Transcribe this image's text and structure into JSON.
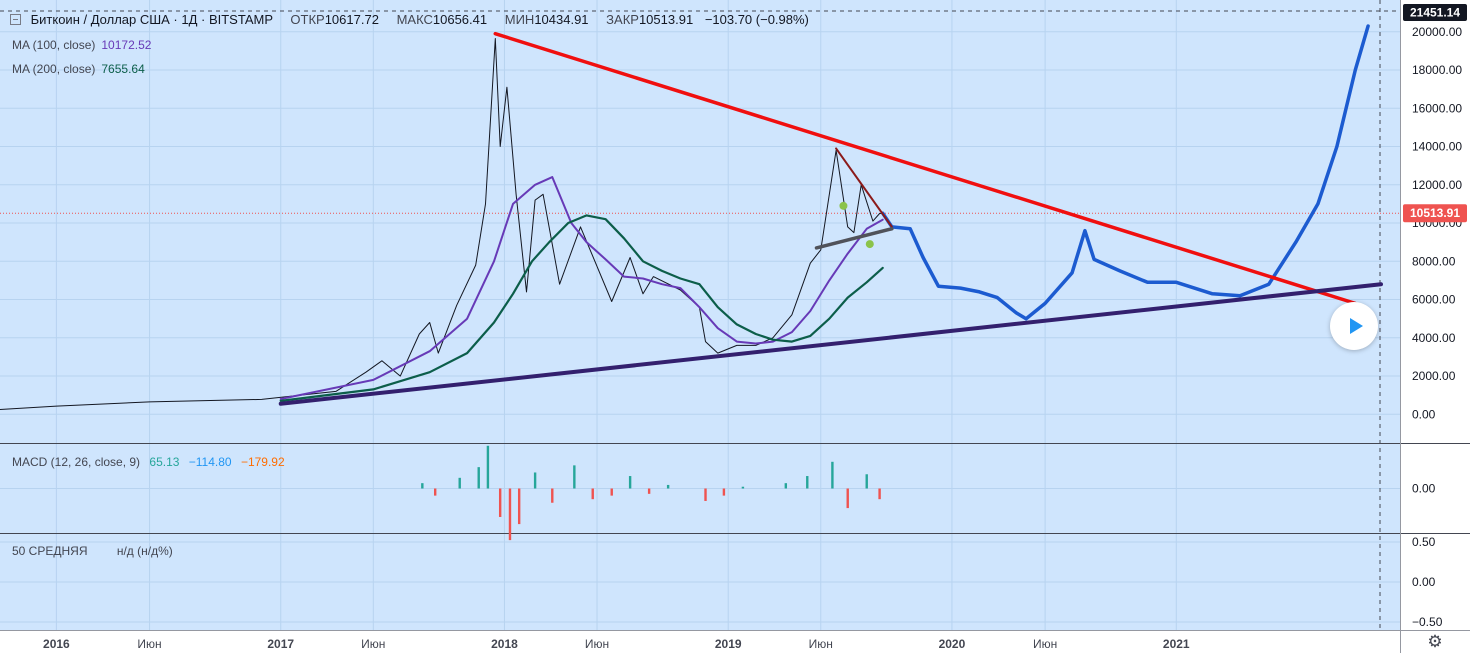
{
  "header": {
    "symbol": "Биткоин / Доллар США · 1Д · BITSTAMP",
    "open_label": "ОТКР",
    "open": "10617.72",
    "high_label": "МАКС",
    "high": "10656.41",
    "low_label": "МИН",
    "low": "10434.91",
    "close_label": "ЗАКР",
    "close": "10513.91",
    "change": "−103.70 (−0.98%)"
  },
  "indicators": {
    "ma100_label": "MA (100, close)",
    "ma100_value": "10172.52",
    "ma100_color": "#673ab7",
    "ma200_label": "MA (200, close)",
    "ma200_value": "7655.64",
    "ma200_color": "#0c5e4a",
    "macd_label": "MACD (12, 26, close, 9)",
    "macd_v1": "65.13",
    "macd_v2": "−114.80",
    "macd_v3": "−179.92",
    "avg_label": "50 СРЕДНЯЯ",
    "avg_value": "н/д (н/д%)"
  },
  "price_badges": {
    "top": "21451.14",
    "last": "10513.91",
    "last_color": "#ef5350"
  },
  "icons": {
    "play": "play-icon",
    "settings": "gear-icon"
  },
  "chart_data": [
    {
      "type": "line",
      "ylim": [
        -1500,
        21451.14
      ],
      "y_ticks": [
        0,
        2000,
        4000,
        6000,
        8000,
        10000,
        12000,
        14000,
        16000,
        18000,
        20000
      ],
      "y_tick_labels": [
        "0.00",
        "2000.00",
        "4000.00",
        "6000.00",
        "8000.00",
        "10000.00",
        "12000.00",
        "14000.00",
        "16000.00",
        "18000.00",
        "20000.00"
      ],
      "x_tick_labels": [
        "2016",
        "Июн",
        "2017",
        "Июн",
        "2018",
        "Июн",
        "2019",
        "Июн",
        "2020",
        "Июн",
        "2021"
      ],
      "x_tick_dates": [
        "2016-01-01",
        "2016-06-01",
        "2017-01-01",
        "2017-06-01",
        "2018-01-01",
        "2018-06-01",
        "2019-01-01",
        "2019-06-01",
        "2020-01-01",
        "2020-06-01",
        "2021-01-01"
      ],
      "x_range": [
        "2015-10-01",
        "2022-01-01"
      ],
      "grid": true,
      "series": [
        {
          "role": "price",
          "color": "#131722",
          "points": [
            [
              "2015-10-01",
              250
            ],
            [
              "2016-01-01",
              430
            ],
            [
              "2016-06-01",
              650
            ],
            [
              "2016-12-01",
              780
            ],
            [
              "2017-02-01",
              1000
            ],
            [
              "2017-04-01",
              1200
            ],
            [
              "2017-05-20",
              2200
            ],
            [
              "2017-06-15",
              2800
            ],
            [
              "2017-07-15",
              2000
            ],
            [
              "2017-08-15",
              4200
            ],
            [
              "2017-09-01",
              4800
            ],
            [
              "2017-09-15",
              3200
            ],
            [
              "2017-10-15",
              5700
            ],
            [
              "2017-11-15",
              7800
            ],
            [
              "2017-12-01",
              11000
            ],
            [
              "2017-12-17",
              19650
            ],
            [
              "2017-12-25",
              14000
            ],
            [
              "2018-01-05",
              17100
            ],
            [
              "2018-01-20",
              11500
            ],
            [
              "2018-02-06",
              6400
            ],
            [
              "2018-02-20",
              11200
            ],
            [
              "2018-03-05",
              11500
            ],
            [
              "2018-04-01",
              6800
            ],
            [
              "2018-05-05",
              9800
            ],
            [
              "2018-06-25",
              5900
            ],
            [
              "2018-07-25",
              8200
            ],
            [
              "2018-08-15",
              6300
            ],
            [
              "2018-09-01",
              7200
            ],
            [
              "2018-10-15",
              6500
            ],
            [
              "2018-11-15",
              5600
            ],
            [
              "2018-11-25",
              3800
            ],
            [
              "2018-12-15",
              3200
            ],
            [
              "2019-01-15",
              3600
            ],
            [
              "2019-02-15",
              3600
            ],
            [
              "2019-03-15",
              4000
            ],
            [
              "2019-04-15",
              5200
            ],
            [
              "2019-05-15",
              7900
            ],
            [
              "2019-06-01",
              8600
            ],
            [
              "2019-06-26",
              13800
            ],
            [
              "2019-07-15",
              9800
            ],
            [
              "2019-07-25",
              9500
            ],
            [
              "2019-08-06",
              12000
            ],
            [
              "2019-08-25",
              10100
            ],
            [
              "2019-09-05",
              10500
            ],
            [
              "2019-09-10",
              10513.91
            ]
          ]
        },
        {
          "role": "ma100",
          "color": "#673ab7",
          "points": [
            [
              "2017-01-01",
              800
            ],
            [
              "2017-06-01",
              1800
            ],
            [
              "2017-09-01",
              3300
            ],
            [
              "2017-11-01",
              5000
            ],
            [
              "2017-12-15",
              8000
            ],
            [
              "2018-01-15",
              11000
            ],
            [
              "2018-02-20",
              12000
            ],
            [
              "2018-03-20",
              12400
            ],
            [
              "2018-04-20",
              10000
            ],
            [
              "2018-05-15",
              9000
            ],
            [
              "2018-06-15",
              8100
            ],
            [
              "2018-07-15",
              7200
            ],
            [
              "2018-08-15",
              7100
            ],
            [
              "2018-09-15",
              6800
            ],
            [
              "2018-10-15",
              6600
            ],
            [
              "2018-11-15",
              5600
            ],
            [
              "2018-12-15",
              4500
            ],
            [
              "2019-01-15",
              3800
            ],
            [
              "2019-02-15",
              3700
            ],
            [
              "2019-03-15",
              3800
            ],
            [
              "2019-04-15",
              4300
            ],
            [
              "2019-05-15",
              5400
            ],
            [
              "2019-06-15",
              7000
            ],
            [
              "2019-07-15",
              8400
            ],
            [
              "2019-08-15",
              9700
            ],
            [
              "2019-09-10",
              10172.52
            ]
          ]
        },
        {
          "role": "ma200",
          "color": "#0c5e4a",
          "points": [
            [
              "2017-01-01",
              700
            ],
            [
              "2017-06-01",
              1300
            ],
            [
              "2017-09-01",
              2200
            ],
            [
              "2017-11-01",
              3200
            ],
            [
              "2017-12-15",
              4800
            ],
            [
              "2018-01-15",
              6300
            ],
            [
              "2018-02-15",
              8000
            ],
            [
              "2018-03-15",
              9000
            ],
            [
              "2018-04-15",
              10000
            ],
            [
              "2018-05-15",
              10400
            ],
            [
              "2018-06-15",
              10200
            ],
            [
              "2018-07-15",
              9200
            ],
            [
              "2018-08-15",
              8000
            ],
            [
              "2018-09-15",
              7500
            ],
            [
              "2018-10-15",
              7100
            ],
            [
              "2018-11-15",
              6800
            ],
            [
              "2018-12-15",
              5600
            ],
            [
              "2019-01-15",
              4700
            ],
            [
              "2019-02-15",
              4200
            ],
            [
              "2019-03-15",
              3900
            ],
            [
              "2019-04-15",
              3800
            ],
            [
              "2019-05-15",
              4100
            ],
            [
              "2019-06-15",
              5000
            ],
            [
              "2019-07-15",
              6100
            ],
            [
              "2019-08-15",
              6900
            ],
            [
              "2019-09-10",
              7655.64
            ]
          ]
        },
        {
          "role": "forecast",
          "color": "#1c5bd0",
          "points": [
            [
              "2019-09-10",
              10513.91
            ],
            [
              "2019-09-25",
              9800
            ],
            [
              "2019-10-25",
              9700
            ],
            [
              "2019-11-15",
              8200
            ],
            [
              "2019-12-10",
              6700
            ],
            [
              "2020-01-15",
              6600
            ],
            [
              "2020-02-15",
              6400
            ],
            [
              "2020-03-15",
              6100
            ],
            [
              "2020-04-15",
              5300
            ],
            [
              "2020-05-01",
              5000
            ],
            [
              "2020-06-01",
              5800
            ],
            [
              "2020-07-15",
              7400
            ],
            [
              "2020-08-05",
              9600
            ],
            [
              "2020-08-20",
              8100
            ],
            [
              "2020-10-01",
              7500
            ],
            [
              "2020-11-15",
              6900
            ],
            [
              "2021-01-01",
              6900
            ],
            [
              "2021-03-01",
              6300
            ],
            [
              "2021-04-15",
              6200
            ],
            [
              "2021-06-01",
              6800
            ],
            [
              "2021-07-15",
              9000
            ],
            [
              "2021-08-20",
              11000
            ],
            [
              "2021-09-20",
              14000
            ],
            [
              "2021-10-20",
              18000
            ],
            [
              "2021-11-10",
              20300
            ]
          ]
        }
      ],
      "trendlines": [
        {
          "role": "resistance",
          "color": "#f00f0f",
          "from": [
            "2017-12-17",
            19900
          ],
          "to": [
            "2021-10-20",
            5800
          ]
        },
        {
          "role": "support",
          "color": "#33206e",
          "from": [
            "2017-01-01",
            550
          ],
          "to": [
            "2021-12-01",
            6800
          ]
        },
        {
          "role": "pattern-top",
          "color": "#8b1a1a",
          "from": [
            "2019-06-26",
            13900
          ],
          "to": [
            "2019-09-25",
            9800
          ]
        },
        {
          "role": "pattern-base",
          "color": "#50525a",
          "from": [
            "2019-05-25",
            8700
          ],
          "to": [
            "2019-09-25",
            9700
          ]
        }
      ],
      "markers": [
        {
          "color": "#8bc34a",
          "at": [
            "2019-07-08",
            10900
          ]
        },
        {
          "color": "#8bc34a",
          "at": [
            "2019-08-20",
            8900
          ]
        }
      ]
    },
    {
      "type": "bar",
      "role": "macd_histogram",
      "ylim": [
        -250,
        250
      ],
      "y_tick_labels": [
        "0.00"
      ],
      "positive_color": "#26a69a",
      "negative_color": "#ef5350",
      "bars": [
        [
          "2017-08-20",
          30
        ],
        [
          "2017-09-10",
          -40
        ],
        [
          "2017-10-20",
          60
        ],
        [
          "2017-11-20",
          120
        ],
        [
          "2017-12-05",
          240
        ],
        [
          "2017-12-25",
          -160
        ],
        [
          "2018-01-10",
          -290
        ],
        [
          "2018-01-25",
          -200
        ],
        [
          "2018-02-20",
          90
        ],
        [
          "2018-03-20",
          -80
        ],
        [
          "2018-04-25",
          130
        ],
        [
          "2018-05-25",
          -60
        ],
        [
          "2018-06-25",
          -40
        ],
        [
          "2018-07-25",
          70
        ],
        [
          "2018-08-25",
          -30
        ],
        [
          "2018-09-25",
          20
        ],
        [
          "2018-11-25",
          -70
        ],
        [
          "2018-12-25",
          -40
        ],
        [
          "2019-01-25",
          10
        ],
        [
          "2019-04-05",
          30
        ],
        [
          "2019-05-10",
          70
        ],
        [
          "2019-06-20",
          150
        ],
        [
          "2019-07-15",
          -110
        ],
        [
          "2019-08-15",
          80
        ],
        [
          "2019-09-05",
          -60
        ]
      ]
    },
    {
      "type": "line",
      "role": "average_pane",
      "ylim": [
        -0.6,
        0.6
      ],
      "y_ticks": [
        0.5,
        0,
        -0.5
      ],
      "y_tick_labels": [
        "0.50",
        "0.00",
        "−0.50"
      ]
    }
  ]
}
